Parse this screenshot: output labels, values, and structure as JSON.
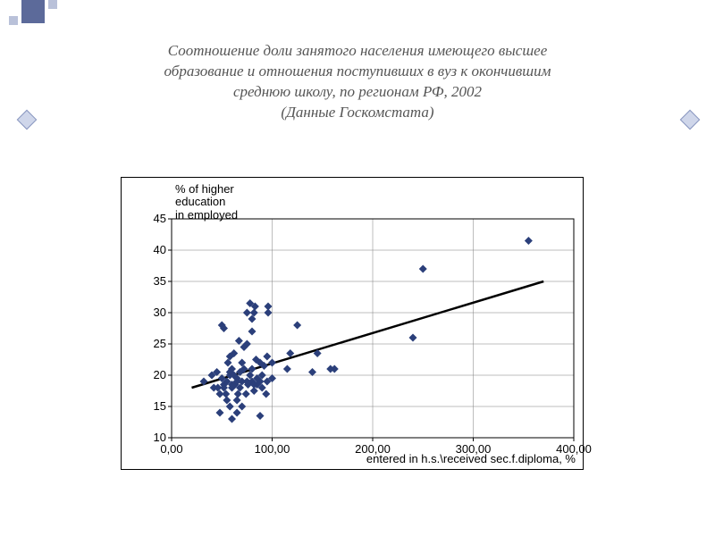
{
  "title": {
    "line1": "Соотношение доли занятого населения имеющего высшее",
    "line2": "образование и отношения поступивших в вуз к окончившим",
    "line3": "среднюю школу, по регионам РФ, 2002",
    "line4": "(Данные Госкомстата)"
  },
  "chart": {
    "type": "scatter",
    "y_axis_label_l1": "% of higher",
    "y_axis_label_l2": "education",
    "y_axis_label_l3": "in employed",
    "x_axis_label": "entered in h.s.\\received sec.f.diploma, %",
    "xlim": [
      0,
      400
    ],
    "ylim": [
      10,
      45
    ],
    "xticks": [
      0,
      100,
      200,
      300,
      400
    ],
    "xtick_labels": [
      "0,00",
      "100,00",
      "200,00",
      "300,00",
      "400,00"
    ],
    "yticks": [
      10,
      15,
      20,
      25,
      30,
      35,
      40,
      45
    ],
    "ytick_labels": [
      "10",
      "15",
      "20",
      "25",
      "30",
      "35",
      "40",
      "45"
    ],
    "marker_color": "#2b3f7a",
    "marker_size": 9,
    "marker_style": "diamond",
    "trend_color": "#000000",
    "trend_width": 2.5,
    "trend_start": [
      20,
      18
    ],
    "trend_end": [
      370,
      35
    ],
    "grid_color": "#7f7f7f",
    "grid_width": 0.5,
    "background_color": "#ffffff",
    "border_color": "#000000",
    "axis_font_size": 13,
    "axis_font_family": "Arial",
    "points": [
      [
        32,
        19
      ],
      [
        40,
        20
      ],
      [
        42,
        18
      ],
      [
        45,
        20.5
      ],
      [
        46,
        18
      ],
      [
        48,
        14
      ],
      [
        48,
        17
      ],
      [
        50,
        19.5
      ],
      [
        50,
        28
      ],
      [
        52,
        18.5
      ],
      [
        52,
        18
      ],
      [
        52,
        27.5
      ],
      [
        54,
        17
      ],
      [
        55,
        16
      ],
      [
        55,
        19
      ],
      [
        56,
        22
      ],
      [
        58,
        15
      ],
      [
        58,
        20
      ],
      [
        58,
        20.5
      ],
      [
        60,
        13
      ],
      [
        60,
        18
      ],
      [
        60,
        18.5
      ],
      [
        60,
        21
      ],
      [
        62,
        20
      ],
      [
        62,
        23.5
      ],
      [
        58,
        23
      ],
      [
        63,
        18.5
      ],
      [
        65,
        14
      ],
      [
        65,
        16
      ],
      [
        65,
        19
      ],
      [
        65,
        19.5
      ],
      [
        66,
        17
      ],
      [
        67,
        25.5
      ],
      [
        68,
        18
      ],
      [
        68,
        20.5
      ],
      [
        70,
        15
      ],
      [
        70,
        19
      ],
      [
        70,
        22
      ],
      [
        72,
        21
      ],
      [
        72,
        24.5
      ],
      [
        74,
        17
      ],
      [
        75,
        19
      ],
      [
        75,
        25
      ],
      [
        75,
        30
      ],
      [
        76,
        18.5
      ],
      [
        78,
        20
      ],
      [
        78,
        31.5
      ],
      [
        80,
        19
      ],
      [
        80,
        21
      ],
      [
        80,
        27
      ],
      [
        80,
        29
      ],
      [
        82,
        17.5
      ],
      [
        82,
        18.5
      ],
      [
        82,
        30
      ],
      [
        83,
        31
      ],
      [
        84,
        22.5
      ],
      [
        85,
        18.5
      ],
      [
        85,
        19.5
      ],
      [
        88,
        13.5
      ],
      [
        88,
        19
      ],
      [
        88,
        22
      ],
      [
        90,
        18
      ],
      [
        90,
        20
      ],
      [
        92,
        21.5
      ],
      [
        94,
        17
      ],
      [
        95,
        19
      ],
      [
        95,
        23
      ],
      [
        96,
        31
      ],
      [
        96,
        30
      ],
      [
        100,
        19.5
      ],
      [
        100,
        22
      ],
      [
        115,
        21
      ],
      [
        118,
        23.5
      ],
      [
        125,
        28
      ],
      [
        140,
        20.5
      ],
      [
        145,
        23.5
      ],
      [
        158,
        21
      ],
      [
        162,
        21
      ],
      [
        240,
        26
      ],
      [
        250,
        37
      ],
      [
        355,
        41.5
      ]
    ]
  },
  "decor": {
    "accent_primary": "#5c6a9a",
    "accent_light": "#b9c1d9",
    "diamond_fill": "#cfd6ea",
    "diamond_border": "#8a97c0"
  }
}
